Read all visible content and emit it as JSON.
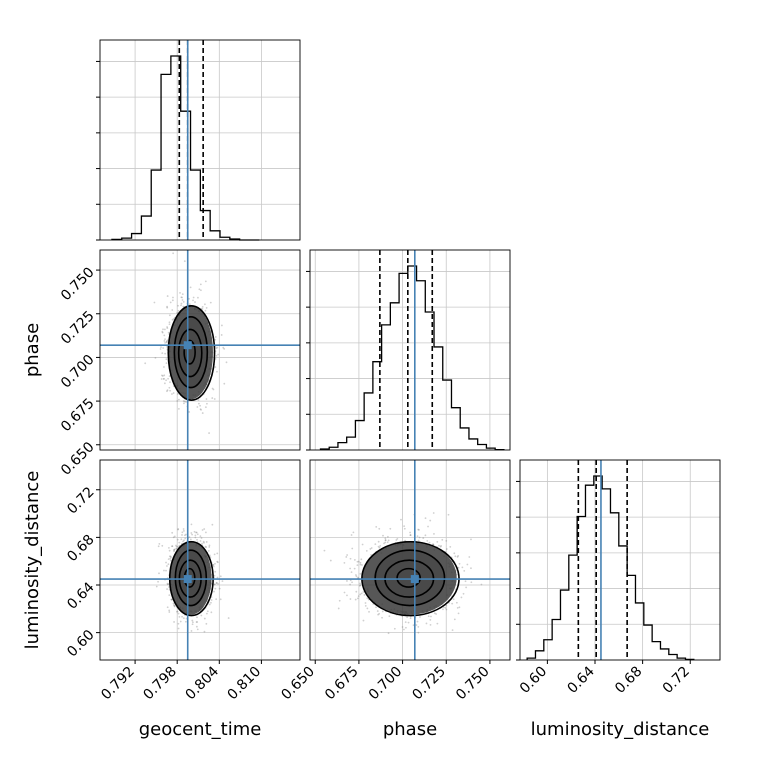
{
  "chart_data": {
    "type": "corner",
    "parameters": [
      "geocent_time",
      "phase",
      "luminosity_distance"
    ],
    "labels": [
      "geocent_time",
      "phase",
      "luminosity_distance"
    ],
    "truth_color": "#4682b4",
    "hist_color": "#000000",
    "grid": true,
    "axes": {
      "geocent_time": {
        "range": [
          0.787,
          0.8155
        ],
        "ticks": [
          0.792,
          0.798,
          0.804,
          0.81
        ],
        "tick_labels": [
          "0.792",
          "0.798",
          "0.804",
          "0.810"
        ],
        "truth": 0.7995,
        "quantiles": [
          0.7983,
          0.7995,
          0.8017
        ]
      },
      "phase": {
        "range": [
          0.647,
          0.7615
        ],
        "ticks": [
          0.65,
          0.675,
          0.7,
          0.725,
          0.75
        ],
        "tick_labels": [
          "0.650",
          "0.675",
          "0.700",
          "0.725",
          "0.750"
        ],
        "truth": 0.707,
        "quantiles": [
          0.687,
          0.703,
          0.717
        ]
      },
      "luminosity_distance": {
        "range": [
          0.577,
          0.745
        ],
        "ticks": [
          0.6,
          0.64,
          0.68,
          0.72
        ],
        "tick_labels": [
          "0.60",
          "0.64",
          "0.68",
          "0.72"
        ],
        "truth": 0.645,
        "quantiles": [
          0.626,
          0.641,
          0.667
        ]
      }
    },
    "marginals": [
      {
        "param": "geocent_time",
        "bin_edges": [
          0.7887,
          0.7901,
          0.7915,
          0.7929,
          0.7943,
          0.7957,
          0.7971,
          0.7985,
          0.7999,
          0.8013,
          0.8027,
          0.8041,
          0.8055,
          0.8069,
          0.8083,
          0.8097
        ],
        "counts": [
          0.003,
          0.01,
          0.035,
          0.13,
          0.38,
          0.9,
          1.0,
          0.7,
          0.38,
          0.16,
          0.05,
          0.015,
          0.005,
          0,
          0
        ]
      },
      {
        "param": "phase",
        "bin_edges": [
          0.653,
          0.658,
          0.663,
          0.668,
          0.673,
          0.678,
          0.683,
          0.688,
          0.693,
          0.698,
          0.703,
          0.708,
          0.713,
          0.718,
          0.723,
          0.728,
          0.733,
          0.738,
          0.743,
          0.748,
          0.753,
          0.758
        ],
        "counts": [
          0.005,
          0.015,
          0.04,
          0.07,
          0.16,
          0.31,
          0.48,
          0.68,
          0.8,
          0.96,
          1.0,
          0.92,
          0.75,
          0.56,
          0.38,
          0.23,
          0.12,
          0.06,
          0.03,
          0.01,
          0.002
        ]
      },
      {
        "param": "luminosity_distance",
        "bin_edges": [
          0.583,
          0.59,
          0.597,
          0.604,
          0.611,
          0.618,
          0.625,
          0.632,
          0.639,
          0.646,
          0.653,
          0.66,
          0.667,
          0.674,
          0.681,
          0.688,
          0.695,
          0.702,
          0.709,
          0.716,
          0.723
        ],
        "counts": [
          0.01,
          0.05,
          0.11,
          0.22,
          0.38,
          0.57,
          0.78,
          0.95,
          1.0,
          0.93,
          0.8,
          0.62,
          0.46,
          0.31,
          0.19,
          0.1,
          0.06,
          0.03,
          0.01,
          0.003
        ]
      }
    ],
    "joint": [
      {
        "x": "geocent_time",
        "y": "phase",
        "mean": [
          0.7999,
          0.703
        ],
        "sd": [
          0.0016,
          0.0135
        ]
      },
      {
        "x": "geocent_time",
        "y": "luminosity_distance",
        "mean": [
          0.7999,
          0.646
        ],
        "sd": [
          0.0015,
          0.0155
        ]
      },
      {
        "x": "phase",
        "y": "luminosity_distance",
        "mean": [
          0.704,
          0.646
        ],
        "sd": [
          0.0135,
          0.0155
        ]
      }
    ],
    "contour_levels": [
      0.5,
      1.0,
      1.5,
      2.0
    ]
  }
}
